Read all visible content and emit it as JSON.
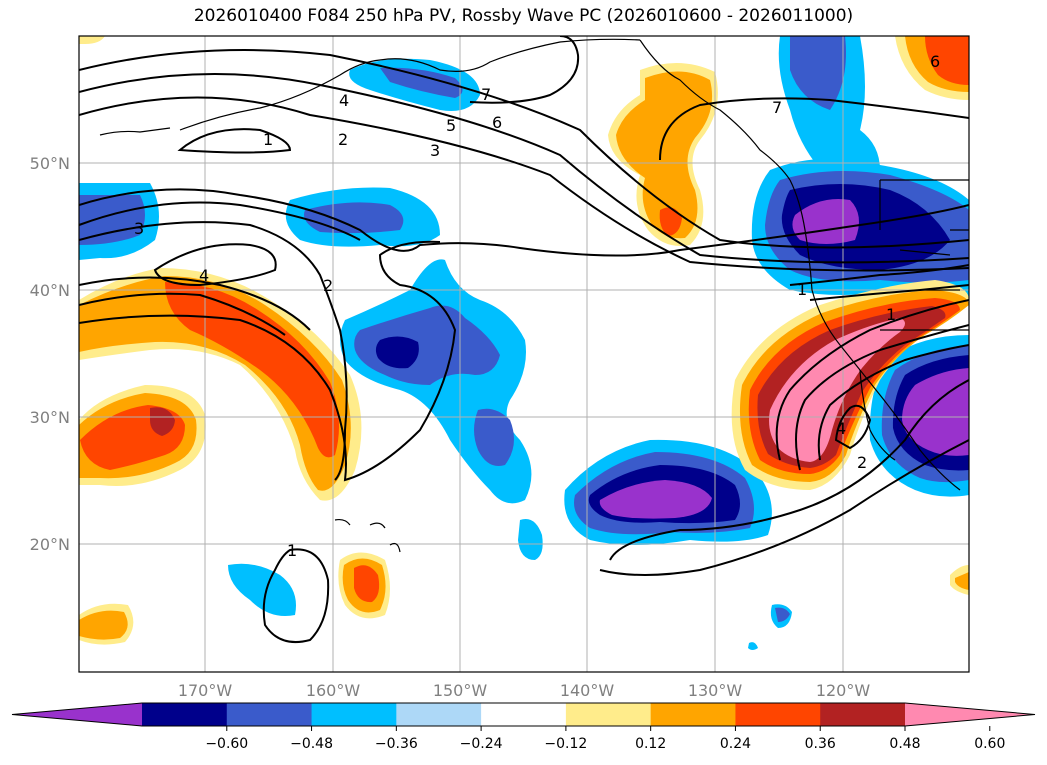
{
  "title": "2026010400 F084 250 hPa PV, Rossby Wave PC (2026010600 - 2026011000)",
  "latitude_labels": [
    "50°N",
    "40°N",
    "30°N",
    "20°N"
  ],
  "longitude_labels": [
    "170°W",
    "160°W",
    "150°W",
    "140°W",
    "130°W",
    "120°W"
  ],
  "colorbar": {
    "colors": [
      "#9932CC",
      "#00008B",
      "#3A5BCB",
      "#00BFFF",
      "#ADD8F7",
      "#FFFFFF",
      "#FFEC8B",
      "#FFA500",
      "#FF4500",
      "#B22222",
      "#FF89B0"
    ],
    "tick_labels": [
      "−0.60",
      "−0.48",
      "−0.36",
      "−0.24",
      "−0.12",
      "0.12",
      "0.24",
      "0.36",
      "0.48",
      "0.60"
    ]
  },
  "contour_labels": [
    "4",
    "1",
    "2",
    "3",
    "5",
    "6",
    "7",
    "7",
    "3",
    "4",
    "2",
    "1",
    "1",
    "4",
    "2",
    "6",
    "1"
  ],
  "colors": {
    "coast": "#000000",
    "grid": "#b0b0b0",
    "contour": "#000000"
  }
}
